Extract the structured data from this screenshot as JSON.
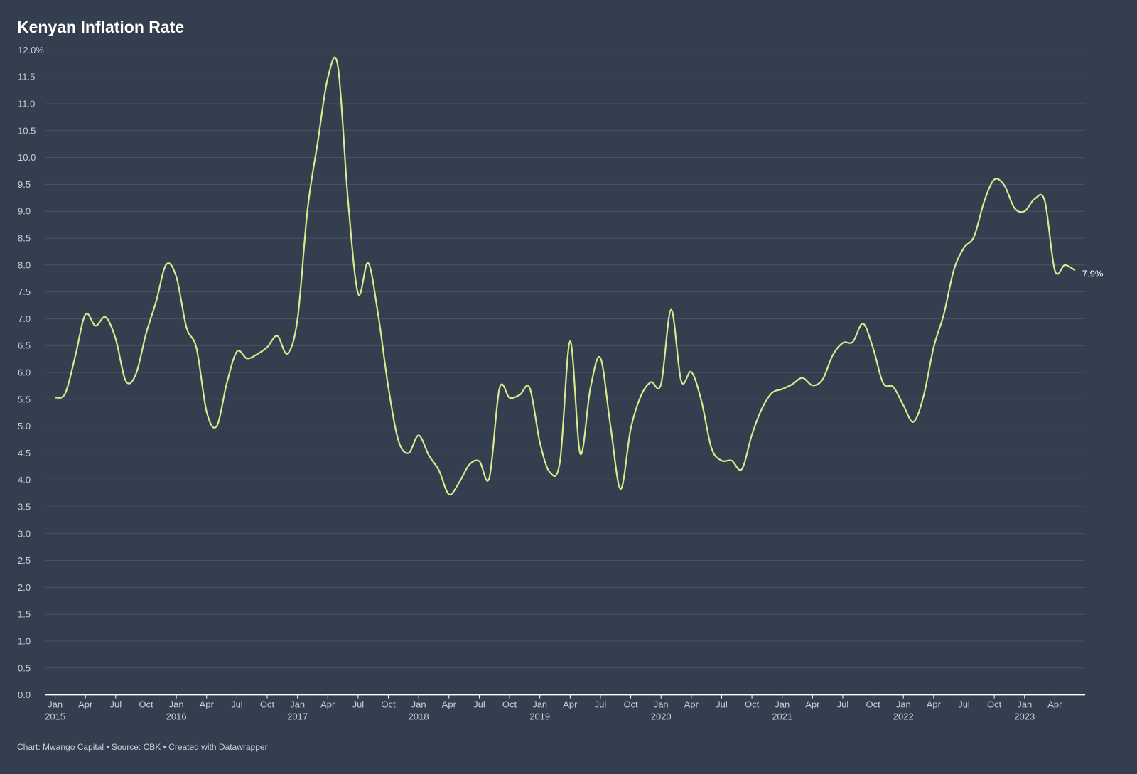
{
  "chart_data": {
    "type": "line",
    "title": "Kenyan Inflation Rate",
    "source": "Chart: Mwango Capital • Source: CBK • Created with Datawrapper",
    "x": [
      "2015-01",
      "2015-02",
      "2015-03",
      "2015-04",
      "2015-05",
      "2015-06",
      "2015-07",
      "2015-08",
      "2015-09",
      "2015-10",
      "2015-11",
      "2015-12",
      "2016-01",
      "2016-02",
      "2016-03",
      "2016-04",
      "2016-05",
      "2016-06",
      "2016-07",
      "2016-08",
      "2016-09",
      "2016-10",
      "2016-11",
      "2016-12",
      "2017-01",
      "2017-02",
      "2017-03",
      "2017-04",
      "2017-05",
      "2017-06",
      "2017-07",
      "2017-08",
      "2017-09",
      "2017-10",
      "2017-11",
      "2017-12",
      "2018-01",
      "2018-02",
      "2018-03",
      "2018-04",
      "2018-05",
      "2018-06",
      "2018-07",
      "2018-08",
      "2018-09",
      "2018-10",
      "2018-11",
      "2018-12",
      "2019-01",
      "2019-02",
      "2019-03",
      "2019-04",
      "2019-05",
      "2019-06",
      "2019-07",
      "2019-08",
      "2019-09",
      "2019-10",
      "2019-11",
      "2019-12",
      "2020-01",
      "2020-02",
      "2020-03",
      "2020-04",
      "2020-05",
      "2020-06",
      "2020-07",
      "2020-08",
      "2020-09",
      "2020-10",
      "2020-11",
      "2020-12",
      "2021-01",
      "2021-02",
      "2021-03",
      "2021-04",
      "2021-05",
      "2021-06",
      "2021-07",
      "2021-08",
      "2021-09",
      "2021-10",
      "2021-11",
      "2021-12",
      "2022-01",
      "2022-02",
      "2022-03",
      "2022-04",
      "2022-05",
      "2022-06",
      "2022-07",
      "2022-08",
      "2022-09",
      "2022-10",
      "2022-11",
      "2022-12",
      "2023-01",
      "2023-02",
      "2023-03",
      "2023-04",
      "2023-05",
      "2023-06"
    ],
    "series": [
      {
        "name": "Inflation rate",
        "color": "#dce88c",
        "values": [
          5.53,
          5.61,
          6.31,
          7.08,
          6.87,
          7.03,
          6.62,
          5.84,
          5.97,
          6.72,
          7.32,
          8.01,
          7.78,
          6.84,
          6.45,
          5.27,
          5.0,
          5.8,
          6.39,
          6.26,
          6.34,
          6.47,
          6.68,
          6.35,
          6.99,
          9.04,
          10.28,
          11.48,
          11.7,
          9.21,
          7.47,
          8.04,
          7.06,
          5.72,
          4.73,
          4.5,
          4.83,
          4.46,
          4.18,
          3.73,
          3.95,
          4.28,
          4.35,
          4.04,
          5.7,
          5.53,
          5.58,
          5.71,
          4.7,
          4.14,
          4.35,
          6.58,
          4.49,
          5.7,
          6.27,
          5.0,
          3.83,
          4.95,
          5.56,
          5.82,
          5.78,
          7.17,
          5.84,
          6.01,
          5.47,
          4.59,
          4.36,
          4.36,
          4.2,
          4.84,
          5.33,
          5.62,
          5.69,
          5.78,
          5.9,
          5.76,
          5.87,
          6.32,
          6.55,
          6.57,
          6.91,
          6.45,
          5.8,
          5.73,
          5.39,
          5.08,
          5.56,
          6.47,
          7.08,
          7.91,
          8.32,
          8.53,
          9.18,
          9.59,
          9.48,
          9.06,
          9.0,
          9.23,
          9.19,
          7.9,
          8.0,
          7.9
        ],
        "value_labels": [
          null,
          null,
          null,
          null,
          null,
          null,
          null,
          null,
          null,
          null,
          null,
          null,
          null,
          null,
          null,
          null,
          null,
          null,
          null,
          null,
          null,
          null,
          null,
          null,
          null,
          null,
          null,
          null,
          null,
          null,
          null,
          null,
          null,
          null,
          null,
          null,
          null,
          null,
          null,
          null,
          null,
          null,
          null,
          null,
          null,
          null,
          null,
          null,
          null,
          null,
          null,
          null,
          null,
          null,
          null,
          null,
          null,
          null,
          null,
          null,
          null,
          null,
          null,
          null,
          null,
          null,
          null,
          null,
          null,
          null,
          null,
          null,
          null,
          null,
          null,
          null,
          null,
          null,
          null,
          null,
          null,
          null,
          null,
          null,
          null,
          null,
          null,
          null,
          null,
          null,
          null,
          null,
          null,
          null,
          null,
          null,
          null,
          null,
          null,
          null,
          null,
          "7.9%"
        ]
      }
    ],
    "ylim": [
      0,
      12
    ],
    "yticks": [
      {
        "value": 0,
        "label": "0.0"
      },
      0.5,
      {
        "value": 1,
        "label": "1.0"
      },
      1.5,
      {
        "value": 2,
        "label": "2.0"
      },
      2.5,
      {
        "value": 3,
        "label": "3.0"
      },
      3.5,
      {
        "value": 4,
        "label": "4.0"
      },
      4.5,
      {
        "value": 5,
        "label": "5.0"
      },
      5.5,
      {
        "value": 6,
        "label": "6.0"
      },
      6.5,
      {
        "value": 7,
        "label": "7.0"
      },
      7.5,
      {
        "value": 8,
        "label": "8.0"
      },
      8.5,
      {
        "value": 9,
        "label": "9.0"
      },
      9.5,
      {
        "value": 10,
        "label": "10.0"
      },
      10.5,
      {
        "value": 11,
        "label": "11.0"
      },
      11.5,
      {
        "value": 12,
        "label": "12.0%"
      }
    ],
    "xticks": [
      {
        "value": "2015-01",
        "label": "Jan",
        "year": "2015"
      },
      {
        "value": "2015-04",
        "label": "Apr"
      },
      {
        "value": "2015-07",
        "label": "Jul"
      },
      {
        "value": "2015-10",
        "label": "Oct"
      },
      {
        "value": "2016-01",
        "label": "Jan",
        "year": "2016"
      },
      {
        "value": "2016-04",
        "label": "Apr"
      },
      {
        "value": "2016-07",
        "label": "Jul"
      },
      {
        "value": "2016-10",
        "label": "Oct"
      },
      {
        "value": "2017-01",
        "label": "Jan",
        "year": "2017"
      },
      {
        "value": "2017-04",
        "label": "Apr"
      },
      {
        "value": "2017-07",
        "label": "Jul"
      },
      {
        "value": "2017-10",
        "label": "Oct"
      },
      {
        "value": "2018-01",
        "label": "Jan",
        "year": "2018"
      },
      {
        "value": "2018-04",
        "label": "Apr"
      },
      {
        "value": "2018-07",
        "label": "Jul"
      },
      {
        "value": "2018-10",
        "label": "Oct"
      },
      {
        "value": "2019-01",
        "label": "Jan",
        "year": "2019"
      },
      {
        "value": "2019-04",
        "label": "Apr"
      },
      {
        "value": "2019-07",
        "label": "Jul"
      },
      {
        "value": "2019-10",
        "label": "Oct"
      },
      {
        "value": "2020-01",
        "label": "Jan",
        "year": "2020"
      },
      {
        "value": "2020-04",
        "label": "Apr"
      },
      {
        "value": "2020-07",
        "label": "Jul"
      },
      {
        "value": "2020-10",
        "label": "Oct"
      },
      {
        "value": "2021-01",
        "label": "Jan",
        "year": "2021"
      },
      {
        "value": "2021-04",
        "label": "Apr"
      },
      {
        "value": "2021-07",
        "label": "Jul"
      },
      {
        "value": "2021-10",
        "label": "Oct"
      },
      {
        "value": "2022-01",
        "label": "Jan",
        "year": "2022"
      },
      {
        "value": "2022-04",
        "label": "Apr"
      },
      {
        "value": "2022-07",
        "label": "Jul"
      },
      {
        "value": "2022-10",
        "label": "Oct"
      },
      {
        "value": "2023-01",
        "label": "Jan",
        "year": "2023"
      },
      {
        "value": "2023-04",
        "label": "Apr"
      }
    ],
    "grid": true
  }
}
